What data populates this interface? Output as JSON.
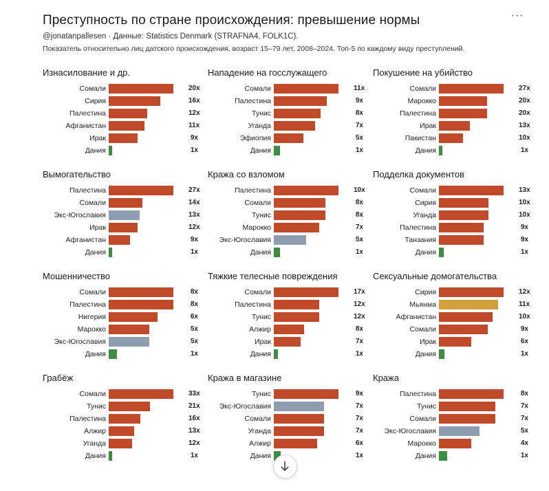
{
  "header": {
    "title": "Преступность по стране происхождения: превышение нормы",
    "menu_label": "···",
    "subtitle": "@jonatanpallesen · Данные: Statistics Denmark (STRAFNA4, FOLK1C).",
    "description": "Показатель относительно лиц датского происхождения, возраст 15–79 лет, 2008–2024. Топ-5 по каждому виду преступлений."
  },
  "colors": {
    "default": "#c0492a",
    "yugoslavia": "#8f9db0",
    "denmark": "#3f8d45",
    "myanmar": "#d1a03b"
  },
  "chart_data": [
    {
      "type": "bar",
      "title": "Изнасилование и др.",
      "categories": [
        "Сомали",
        "Сирия",
        "Палестина",
        "Афганистан",
        "Ирак",
        "Дания"
      ],
      "values": [
        20,
        16,
        12,
        11,
        9,
        1
      ],
      "labels": [
        "20x",
        "16x",
        "12x",
        "11x",
        "9x",
        "1x"
      ]
    },
    {
      "type": "bar",
      "title": "Нападение на госслужащего",
      "categories": [
        "Сомали",
        "Палестина",
        "Тунис",
        "Уганда",
        "Эфиопия",
        "Дания"
      ],
      "values": [
        11,
        9,
        8,
        7,
        5,
        1
      ],
      "labels": [
        "11x",
        "9x",
        "8x",
        "7x",
        "5x",
        "1x"
      ]
    },
    {
      "type": "bar",
      "title": "Покушение на убийство",
      "categories": [
        "Сомали",
        "Марокко",
        "Палестина",
        "Ирак",
        "Пакистан",
        "Дания"
      ],
      "values": [
        27,
        20,
        20,
        13,
        10,
        1
      ],
      "labels": [
        "27x",
        "20x",
        "20x",
        "13x",
        "10x",
        "1x"
      ]
    },
    {
      "type": "bar",
      "title": "Вымогательство",
      "categories": [
        "Палестина",
        "Сомали",
        "Экс-Югославия",
        "Ирак",
        "Афганистан",
        "Дания"
      ],
      "values": [
        27,
        14,
        13,
        12,
        9,
        1
      ],
      "labels": [
        "27x",
        "14x",
        "13x",
        "12x",
        "9x",
        "1x"
      ]
    },
    {
      "type": "bar",
      "title": "Кража со взломом",
      "categories": [
        "Палестина",
        "Сомали",
        "Тунис",
        "Марокко",
        "Экс-Югославия",
        "Дания"
      ],
      "values": [
        10,
        8,
        8,
        7,
        5,
        1
      ],
      "labels": [
        "10x",
        "8x",
        "8x",
        "7x",
        "5x",
        "1x"
      ]
    },
    {
      "type": "bar",
      "title": "Подделка документов",
      "categories": [
        "Сомали",
        "Сирия",
        "Уганда",
        "Палестина",
        "Танзания",
        "Дания"
      ],
      "values": [
        13,
        10,
        10,
        9,
        9,
        1
      ],
      "labels": [
        "13x",
        "10x",
        "10x",
        "9x",
        "9x",
        "1x"
      ]
    },
    {
      "type": "bar",
      "title": "Мошенничество",
      "categories": [
        "Сомали",
        "Палестина",
        "Нигерия",
        "Марокко",
        "Экс-Югославия",
        "Дания"
      ],
      "values": [
        8,
        8,
        6,
        5,
        5,
        1
      ],
      "labels": [
        "8x",
        "8x",
        "6x",
        "5x",
        "5x",
        "1x"
      ]
    },
    {
      "type": "bar",
      "title": "Тяжкие телесные повреждения",
      "categories": [
        "Сомали",
        "Палестина",
        "Тунис",
        "Алжир",
        "Ирак",
        "Дания"
      ],
      "values": [
        17,
        12,
        12,
        8,
        7,
        1
      ],
      "labels": [
        "17x",
        "12x",
        "12x",
        "8x",
        "7x",
        "1x"
      ]
    },
    {
      "type": "bar",
      "title": "Сексуальные домогательства",
      "categories": [
        "Сирия",
        "Мьянма",
        "Афганистан",
        "Сомали",
        "Ирак",
        "Дания"
      ],
      "values": [
        12,
        11,
        10,
        9,
        6,
        1
      ],
      "labels": [
        "12x",
        "11x",
        "10x",
        "9x",
        "6x",
        "1x"
      ]
    },
    {
      "type": "bar",
      "title": "Грабёж",
      "categories": [
        "Сомали",
        "Тунис",
        "Палестина",
        "Алжир",
        "Уганда",
        "Дания"
      ],
      "values": [
        33,
        21,
        16,
        13,
        12,
        1
      ],
      "labels": [
        "33x",
        "21x",
        "16x",
        "13x",
        "12x",
        "1x"
      ]
    },
    {
      "type": "bar",
      "title": "Кража в магазине",
      "categories": [
        "Тунис",
        "Экс-Югославия",
        "Сомали",
        "Уганда",
        "Алжир",
        "Дания"
      ],
      "values": [
        9,
        7,
        7,
        7,
        6,
        1
      ],
      "labels": [
        "9x",
        "7x",
        "7x",
        "7x",
        "6x",
        "1x"
      ]
    },
    {
      "type": "bar",
      "title": "Кража",
      "categories": [
        "Палестина",
        "Тунис",
        "Сомали",
        "Экс-Югославия",
        "Марокко",
        "Дания"
      ],
      "values": [
        8,
        7,
        7,
        5,
        4,
        1
      ],
      "labels": [
        "8x",
        "7x",
        "7x",
        "5x",
        "4x",
        "1x"
      ]
    }
  ]
}
